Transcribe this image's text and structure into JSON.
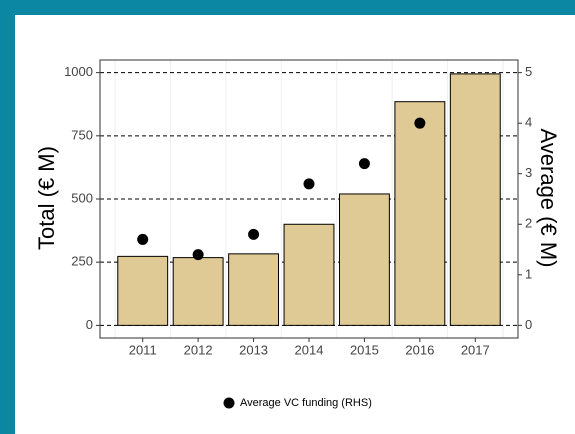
{
  "chart_data": {
    "type": "bar",
    "categories": [
      "2011",
      "2012",
      "2013",
      "2014",
      "2015",
      "2016",
      "2017"
    ],
    "series": [
      {
        "name": "Total",
        "type": "bar",
        "color": "#dfc994",
        "values": [
          273,
          268,
          283,
          400,
          520,
          885,
          995
        ]
      },
      {
        "name": "Average VC funding (RHS)",
        "type": "scatter",
        "axis": "y2",
        "color": "#000000",
        "values": [
          1.7,
          1.4,
          1.8,
          2.8,
          3.2,
          4.0,
          null
        ]
      }
    ],
    "ylabel": "Total (€ M)",
    "y2label": "Average (€ M)",
    "ylim": [
      -50,
      1050
    ],
    "yticks": [
      0,
      250,
      500,
      750,
      1000
    ],
    "y2lim": [
      -0.25,
      5.25
    ],
    "y2ticks": [
      0,
      1,
      2,
      3,
      4,
      5
    ],
    "grid": true,
    "legend": "bottom"
  }
}
